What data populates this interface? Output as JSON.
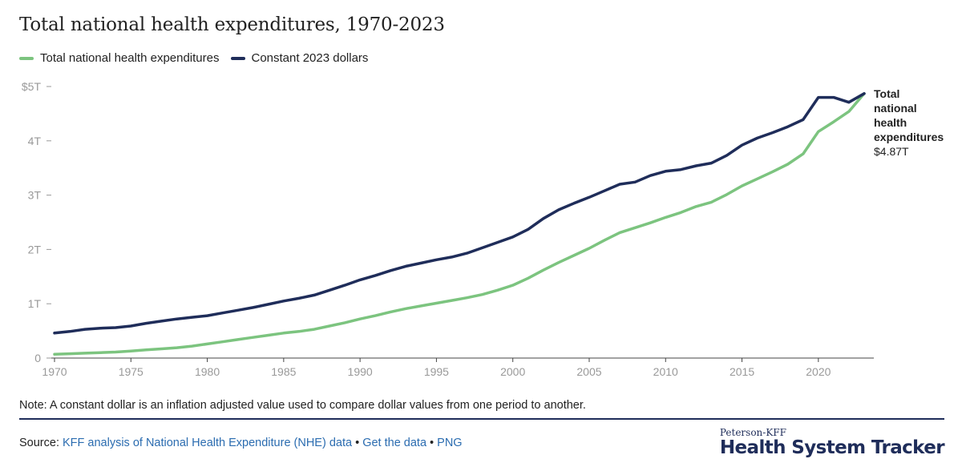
{
  "title": "Total national health expenditures, 1970-2023",
  "colors": {
    "nominal": "#7cc47f",
    "constant": "#1f2d5a",
    "axis": "#999999",
    "link": "#2b6cb0"
  },
  "legend": [
    {
      "label": "Total national health expenditures",
      "color": "#7cc47f"
    },
    {
      "label": "Constant 2023 dollars",
      "color": "#1f2d5a"
    }
  ],
  "chart_data": {
    "type": "line",
    "x": [
      1970,
      1971,
      1972,
      1973,
      1974,
      1975,
      1976,
      1977,
      1978,
      1979,
      1980,
      1981,
      1982,
      1983,
      1984,
      1985,
      1986,
      1987,
      1988,
      1989,
      1990,
      1991,
      1992,
      1993,
      1994,
      1995,
      1996,
      1997,
      1998,
      1999,
      2000,
      2001,
      2002,
      2003,
      2004,
      2005,
      2006,
      2007,
      2008,
      2009,
      2010,
      2011,
      2012,
      2013,
      2014,
      2015,
      2016,
      2017,
      2018,
      2019,
      2020,
      2021,
      2022,
      2023
    ],
    "series": [
      {
        "name": "Total national health expenditures",
        "color": "#7cc47f",
        "values": [
          0.07,
          0.08,
          0.09,
          0.1,
          0.11,
          0.13,
          0.15,
          0.17,
          0.19,
          0.22,
          0.26,
          0.3,
          0.34,
          0.38,
          0.42,
          0.46,
          0.49,
          0.53,
          0.59,
          0.65,
          0.72,
          0.78,
          0.85,
          0.91,
          0.96,
          1.01,
          1.06,
          1.11,
          1.17,
          1.25,
          1.34,
          1.47,
          1.62,
          1.76,
          1.89,
          2.02,
          2.17,
          2.31,
          2.4,
          2.49,
          2.59,
          2.68,
          2.79,
          2.87,
          3.01,
          3.17,
          3.3,
          3.43,
          3.57,
          3.76,
          4.17,
          4.35,
          4.54,
          4.87
        ]
      },
      {
        "name": "Constant 2023 dollars",
        "color": "#1f2d5a",
        "values": [
          0.46,
          0.49,
          0.53,
          0.55,
          0.56,
          0.59,
          0.64,
          0.68,
          0.72,
          0.75,
          0.78,
          0.83,
          0.88,
          0.93,
          0.99,
          1.05,
          1.1,
          1.16,
          1.25,
          1.34,
          1.44,
          1.52,
          1.61,
          1.69,
          1.75,
          1.81,
          1.86,
          1.93,
          2.03,
          2.13,
          2.23,
          2.37,
          2.57,
          2.73,
          2.85,
          2.96,
          3.08,
          3.2,
          3.24,
          3.36,
          3.44,
          3.47,
          3.54,
          3.59,
          3.73,
          3.92,
          4.05,
          4.15,
          4.26,
          4.39,
          4.8,
          4.8,
          4.71,
          4.87
        ]
      }
    ],
    "yticks": [
      "0",
      "1T",
      "2T",
      "3T",
      "4T",
      "$5T"
    ],
    "ytick_values": [
      0,
      1,
      2,
      3,
      4,
      5
    ],
    "xticks": [
      1970,
      1975,
      1980,
      1985,
      1990,
      1995,
      2000,
      2005,
      2010,
      2015,
      2020
    ],
    "xlim": [
      1970,
      2023
    ],
    "ylim": [
      0,
      5
    ],
    "grid": false,
    "end_label": {
      "lines": [
        "Total",
        "national",
        "health",
        "expenditures"
      ],
      "value": "$4.87T"
    }
  },
  "note": "Note: A constant dollar is an inflation adjusted value used to compare dollar values from one period to another.",
  "source": {
    "prefix": "Source: ",
    "link1": "KFF analysis of National Health Expenditure (NHE) data",
    "sep1": " • ",
    "link2": "Get the data",
    "sep2": " • ",
    "link3": "PNG"
  },
  "brand": {
    "top": "Peterson-KFF",
    "main": "Health System Tracker"
  }
}
